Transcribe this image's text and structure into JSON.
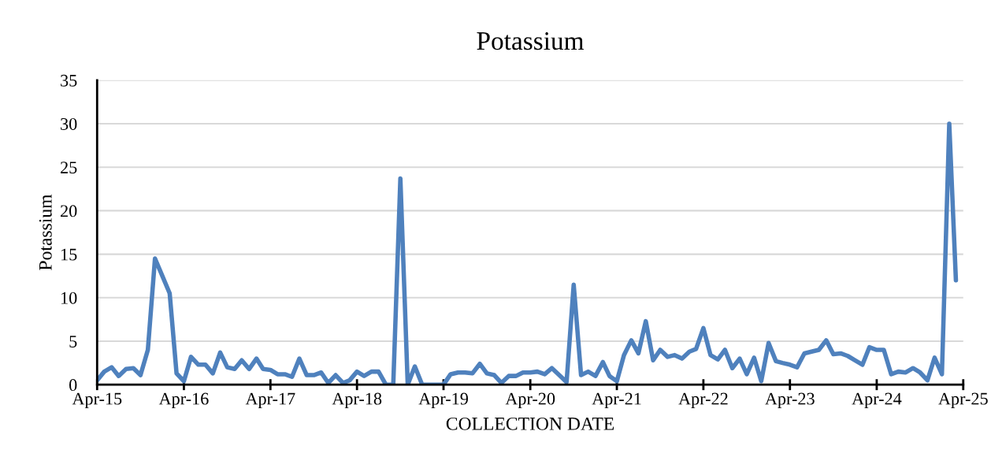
{
  "chart_data": {
    "type": "line",
    "title": "Potassium",
    "xlabel": "COLLECTION DATE",
    "ylabel": "Potassium",
    "x": [
      "2015-04",
      "2015-05",
      "2015-06",
      "2015-07",
      "2015-08",
      "2015-09",
      "2015-10",
      "2015-11",
      "2015-12",
      "2016-01",
      "2016-02",
      "2016-03",
      "2016-04",
      "2016-05",
      "2016-06",
      "2016-07",
      "2016-08",
      "2016-09",
      "2016-10",
      "2016-11",
      "2016-12",
      "2017-01",
      "2017-02",
      "2017-03",
      "2017-04",
      "2017-05",
      "2017-06",
      "2017-07",
      "2017-08",
      "2017-09",
      "2017-10",
      "2017-11",
      "2017-12",
      "2018-01",
      "2018-02",
      "2018-03",
      "2018-04",
      "2018-05",
      "2018-06",
      "2018-07",
      "2018-08",
      "2018-09",
      "2018-10",
      "2018-11",
      "2018-12",
      "2019-01",
      "2019-02",
      "2019-03",
      "2019-04",
      "2019-05",
      "2019-06",
      "2019-07",
      "2019-08",
      "2019-09",
      "2019-10",
      "2019-11",
      "2019-12",
      "2020-01",
      "2020-02",
      "2020-03",
      "2020-04",
      "2020-05",
      "2020-06",
      "2020-07",
      "2020-08",
      "2020-09",
      "2020-10",
      "2020-11",
      "2020-12",
      "2021-01",
      "2021-02",
      "2021-03",
      "2021-04",
      "2021-05",
      "2021-06",
      "2021-07",
      "2021-08",
      "2021-09",
      "2021-10",
      "2021-11",
      "2021-12",
      "2022-01",
      "2022-02",
      "2022-03",
      "2022-04",
      "2022-05",
      "2022-06",
      "2022-07",
      "2022-08",
      "2022-09",
      "2022-10",
      "2022-11",
      "2022-12",
      "2023-01",
      "2023-02",
      "2023-03",
      "2023-04",
      "2023-05",
      "2023-06",
      "2023-07",
      "2023-08",
      "2023-09",
      "2023-10",
      "2023-11",
      "2023-12",
      "2024-01",
      "2024-02",
      "2024-03",
      "2024-04",
      "2024-05",
      "2024-06",
      "2024-07",
      "2024-08",
      "2024-09",
      "2024-10",
      "2024-11",
      "2024-12",
      "2025-01",
      "2025-02",
      "2025-03"
    ],
    "series": [
      {
        "color": "#4f81bd",
        "values": [
          0.5,
          1.5,
          2.0,
          1.0,
          1.8,
          1.9,
          1.1,
          4.0,
          14.5,
          12.5,
          10.5,
          1.3,
          0.4,
          3.2,
          2.3,
          2.3,
          1.3,
          3.7,
          2.0,
          1.8,
          2.8,
          1.8,
          3.0,
          1.8,
          1.7,
          1.2,
          1.2,
          0.9,
          3.0,
          1.1,
          1.1,
          1.4,
          0.2,
          1.1,
          0.2,
          0.5,
          1.5,
          1.0,
          1.5,
          1.5,
          0,
          0,
          23.7,
          0,
          2.1,
          0,
          0,
          0,
          0,
          1.2,
          1.4,
          1.4,
          1.3,
          2.4,
          1.3,
          1.1,
          0.2,
          1.0,
          1.0,
          1.4,
          1.4,
          1.5,
          1.2,
          1.9,
          1.1,
          0.3,
          11.5,
          1.1,
          1.5,
          1.0,
          2.6,
          1.0,
          0.4,
          3.4,
          5.1,
          3.6,
          7.3,
          2.8,
          4.0,
          3.2,
          3.4,
          3.0,
          3.8,
          4.1,
          6.5,
          3.4,
          2.9,
          4.0,
          1.9,
          3.0,
          1.2,
          3.1,
          0.4,
          4.8,
          2.7,
          2.5,
          2.3,
          2.0,
          3.6,
          3.8,
          4.0,
          5.1,
          3.5,
          3.6,
          3.3,
          2.8,
          2.3,
          4.3,
          4.0,
          4.0,
          1.2,
          1.5,
          1.4,
          1.9,
          1.4,
          0.5,
          3.1,
          1.2,
          30,
          12
        ]
      }
    ],
    "xlim": [
      "2015-04",
      "2025-04"
    ],
    "xticks": [
      {
        "value": "2015-04",
        "label": "Apr-15"
      },
      {
        "value": "2016-04",
        "label": "Apr-16"
      },
      {
        "value": "2017-04",
        "label": "Apr-17"
      },
      {
        "value": "2018-04",
        "label": "Apr-18"
      },
      {
        "value": "2019-04",
        "label": "Apr-19"
      },
      {
        "value": "2020-04",
        "label": "Apr-20"
      },
      {
        "value": "2021-04",
        "label": "Apr-21"
      },
      {
        "value": "2022-04",
        "label": "Apr-22"
      },
      {
        "value": "2023-04",
        "label": "Apr-23"
      },
      {
        "value": "2024-04",
        "label": "Apr-24"
      },
      {
        "value": "2025-04",
        "label": "Apr-25"
      }
    ],
    "ylim": [
      0,
      35
    ],
    "yticks": [
      0,
      5,
      10,
      15,
      20,
      25,
      30,
      35
    ],
    "grid": "y",
    "line_style": "solid",
    "marker": "none"
  }
}
